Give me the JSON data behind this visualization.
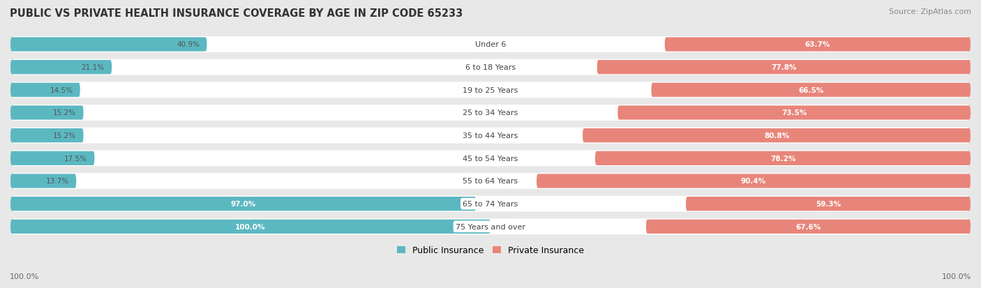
{
  "title": "PUBLIC VS PRIVATE HEALTH INSURANCE COVERAGE BY AGE IN ZIP CODE 65233",
  "source": "Source: ZipAtlas.com",
  "categories": [
    "Under 6",
    "6 to 18 Years",
    "19 to 25 Years",
    "25 to 34 Years",
    "35 to 44 Years",
    "45 to 54 Years",
    "55 to 64 Years",
    "65 to 74 Years",
    "75 Years and over"
  ],
  "public_values": [
    40.9,
    21.1,
    14.5,
    15.2,
    15.2,
    17.5,
    13.7,
    97.0,
    100.0
  ],
  "private_values": [
    63.7,
    77.8,
    66.5,
    73.5,
    80.8,
    78.2,
    90.4,
    59.3,
    67.6
  ],
  "public_color": "#5BB8C1",
  "private_color": "#E8857A",
  "bg_color": "#E8E8E8",
  "bar_bg_color": "#F8F8F8",
  "row_bg_color": "#FFFFFF",
  "label_color_light": "#FFFFFF",
  "label_color_dark": "#555555",
  "center_label_color": "#444444",
  "title_color": "#333333",
  "legend_public": "Public Insurance",
  "legend_private": "Private Insurance",
  "x_left_label": "100.0%",
  "x_right_label": "100.0%",
  "max_val": 100
}
